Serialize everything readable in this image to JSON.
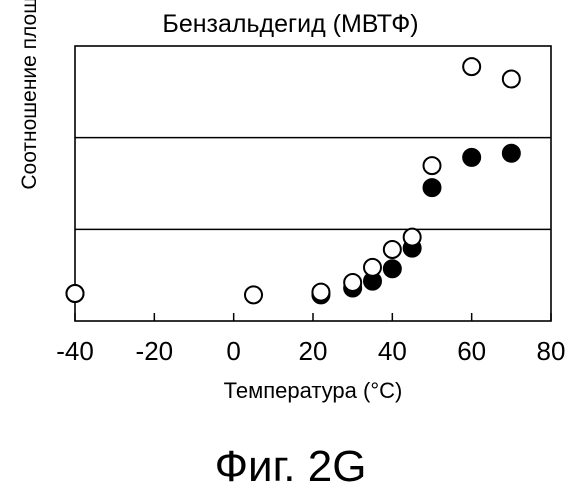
{
  "caption": "Фиг. 2G",
  "chart_data": {
    "type": "scatter",
    "title": "Бензальдегид (МВТФ)",
    "xlabel": "Температура (°С)",
    "ylabel": "Соотношение площадей (-)",
    "xlim": [
      -40,
      80
    ],
    "ylim": [
      0,
      1
    ],
    "x_ticks": [
      "-40",
      "-20",
      "0",
      "20",
      "40",
      "60",
      "80"
    ],
    "x_tick_values": [
      -40,
      -20,
      0,
      20,
      40,
      60,
      80
    ],
    "hlines": [
      0.333,
      0.667
    ],
    "series": [
      {
        "marker": "filled",
        "color": "#000000",
        "points": [
          {
            "x": -40,
            "y": 0.1
          },
          {
            "x": 22,
            "y": 0.095
          },
          {
            "x": 30,
            "y": 0.12
          },
          {
            "x": 35,
            "y": 0.145
          },
          {
            "x": 40,
            "y": 0.19
          },
          {
            "x": 45,
            "y": 0.265
          },
          {
            "x": 50,
            "y": 0.485
          },
          {
            "x": 60,
            "y": 0.595
          },
          {
            "x": 70,
            "y": 0.61
          }
        ]
      },
      {
        "marker": "open",
        "color": "#000000",
        "points": [
          {
            "x": -40,
            "y": 0.1
          },
          {
            "x": 5,
            "y": 0.095
          },
          {
            "x": 22,
            "y": 0.105
          },
          {
            "x": 30,
            "y": 0.14
          },
          {
            "x": 35,
            "y": 0.195
          },
          {
            "x": 40,
            "y": 0.26
          },
          {
            "x": 45,
            "y": 0.305
          },
          {
            "x": 50,
            "y": 0.565
          },
          {
            "x": 60,
            "y": 0.925
          },
          {
            "x": 70,
            "y": 0.88
          }
        ]
      }
    ]
  }
}
